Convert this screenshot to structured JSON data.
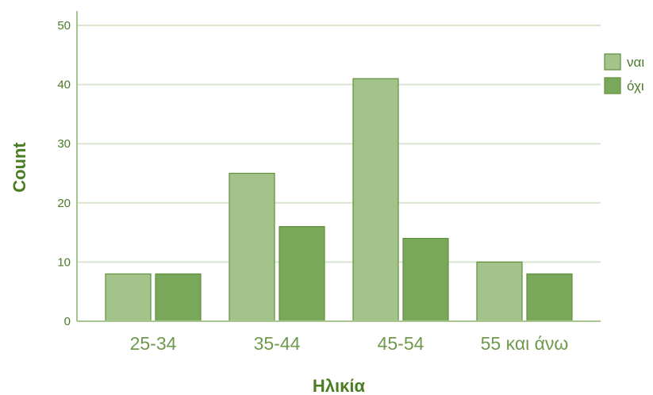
{
  "chart_data": {
    "type": "bar",
    "categories": [
      "25-34",
      "35-44",
      "45-54",
      "55 και άνω"
    ],
    "series": [
      {
        "name": "ναι",
        "values": [
          8,
          25,
          41,
          10
        ]
      },
      {
        "name": "όχι",
        "values": [
          8,
          16,
          14,
          8
        ]
      }
    ],
    "xlabel": "Ηλικία",
    "ylabel": "Count",
    "ylim": [
      0,
      50
    ],
    "yticks": [
      0,
      10,
      20,
      30,
      40,
      50
    ],
    "grid": true,
    "legend": "right",
    "colors": [
      "#a3c38b",
      "#7aa85a"
    ],
    "edge_color": "#5f8f3c"
  }
}
